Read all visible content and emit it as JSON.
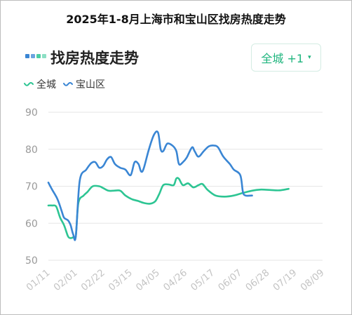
{
  "title": "2025年1-8月上海市和宝山区找房热度走势",
  "heading": "找房热度走势",
  "city_button": {
    "label": "全城 +1",
    "caret": "▾"
  },
  "colors": {
    "city": "#2dc593",
    "baoshan": "#3a86d4",
    "accent": "#1fb57e",
    "grid": "#e6e6e6"
  },
  "chart_data": {
    "type": "line",
    "title": "2025年1-8月上海市和宝山区找房热度走势",
    "xlabel": "",
    "ylabel": "",
    "ylim": [
      50,
      90
    ],
    "yticks": [
      90,
      80,
      70,
      60,
      50
    ],
    "xticks": [
      "01/11",
      "02/01",
      "02/22",
      "03/15",
      "04/05",
      "04/26",
      "05/17",
      "06/07",
      "06/28",
      "07/19",
      "08/09"
    ],
    "legend_position": "top-left",
    "grid": "horizontal",
    "series": [
      {
        "name": "全城",
        "color": "#2dc593",
        "points": [
          [
            "01/11",
            64.8
          ],
          [
            "01/14",
            64.8
          ],
          [
            "01/17",
            64.5
          ],
          [
            "01/20",
            61.5
          ],
          [
            "01/23",
            59.5
          ],
          [
            "01/26",
            56.5
          ],
          [
            "01/28",
            56.0
          ],
          [
            "01/30",
            56.2
          ],
          [
            "02/01",
            56.5
          ],
          [
            "02/03",
            65.5
          ],
          [
            "02/07",
            67.5
          ],
          [
            "02/10",
            68.5
          ],
          [
            "02/14",
            70.0
          ],
          [
            "02/19",
            70.0
          ],
          [
            "02/22",
            69.5
          ],
          [
            "02/26",
            68.8
          ],
          [
            "03/02",
            68.8
          ],
          [
            "03/07",
            68.8
          ],
          [
            "03/11",
            67.5
          ],
          [
            "03/16",
            66.5
          ],
          [
            "03/21",
            66.0
          ],
          [
            "03/25",
            65.5
          ],
          [
            "03/30",
            65.3
          ],
          [
            "04/03",
            66.0
          ],
          [
            "04/06",
            68.0
          ],
          [
            "04/09",
            70.3
          ],
          [
            "04/13",
            70.5
          ],
          [
            "04/17",
            70.3
          ],
          [
            "04/19",
            72.1
          ],
          [
            "04/21",
            72.0
          ],
          [
            "04/24",
            70.3
          ],
          [
            "04/28",
            70.8
          ],
          [
            "05/02",
            69.7
          ],
          [
            "05/06",
            70.3
          ],
          [
            "05/09",
            70.6
          ],
          [
            "05/13",
            69.0
          ],
          [
            "05/19",
            67.5
          ],
          [
            "05/26",
            67.2
          ],
          [
            "06/02",
            67.5
          ],
          [
            "06/09",
            68.2
          ],
          [
            "06/16",
            68.8
          ],
          [
            "06/23",
            69.1
          ],
          [
            "06/30",
            69.0
          ],
          [
            "07/07",
            68.9
          ],
          [
            "07/14",
            69.3
          ]
        ]
      },
      {
        "name": "宝山区",
        "color": "#3a86d4",
        "points": [
          [
            "01/11",
            71.0
          ],
          [
            "01/14",
            69.0
          ],
          [
            "01/18",
            66.5
          ],
          [
            "01/21",
            63.5
          ],
          [
            "01/23",
            61.5
          ],
          [
            "01/26",
            60.8
          ],
          [
            "01/28",
            59.5
          ],
          [
            "01/30",
            57.0
          ],
          [
            "02/01",
            56.5
          ],
          [
            "02/04",
            71.5
          ],
          [
            "02/09",
            74.5
          ],
          [
            "02/13",
            76.3
          ],
          [
            "02/16",
            76.5
          ],
          [
            "02/19",
            75.0
          ],
          [
            "02/22",
            75.5
          ],
          [
            "02/25",
            77.3
          ],
          [
            "02/28",
            77.9
          ],
          [
            "03/03",
            76.0
          ],
          [
            "03/07",
            75.0
          ],
          [
            "03/11",
            74.5
          ],
          [
            "03/15",
            73.0
          ],
          [
            "03/18",
            76.5
          ],
          [
            "03/21",
            76.0
          ],
          [
            "03/23",
            74.0
          ],
          [
            "03/25",
            74.8
          ],
          [
            "03/29",
            80.0
          ],
          [
            "04/02",
            84.0
          ],
          [
            "04/05",
            84.5
          ],
          [
            "04/07",
            80.0
          ],
          [
            "04/09",
            79.5
          ],
          [
            "04/12",
            81.5
          ],
          [
            "04/16",
            81.0
          ],
          [
            "04/19",
            79.5
          ],
          [
            "04/21",
            76.0
          ],
          [
            "04/24",
            76.5
          ],
          [
            "04/27",
            77.8
          ],
          [
            "05/01",
            80.5
          ],
          [
            "05/03",
            79.5
          ],
          [
            "05/06",
            78.0
          ],
          [
            "05/10",
            79.5
          ],
          [
            "05/14",
            80.8
          ],
          [
            "05/18",
            81.0
          ],
          [
            "05/21",
            80.5
          ],
          [
            "05/25",
            78.0
          ],
          [
            "05/30",
            76.0
          ],
          [
            "06/02",
            74.5
          ],
          [
            "06/07",
            73.0
          ],
          [
            "06/09",
            68.5
          ],
          [
            "06/11",
            67.5
          ],
          [
            "06/16",
            67.5
          ]
        ]
      }
    ]
  }
}
